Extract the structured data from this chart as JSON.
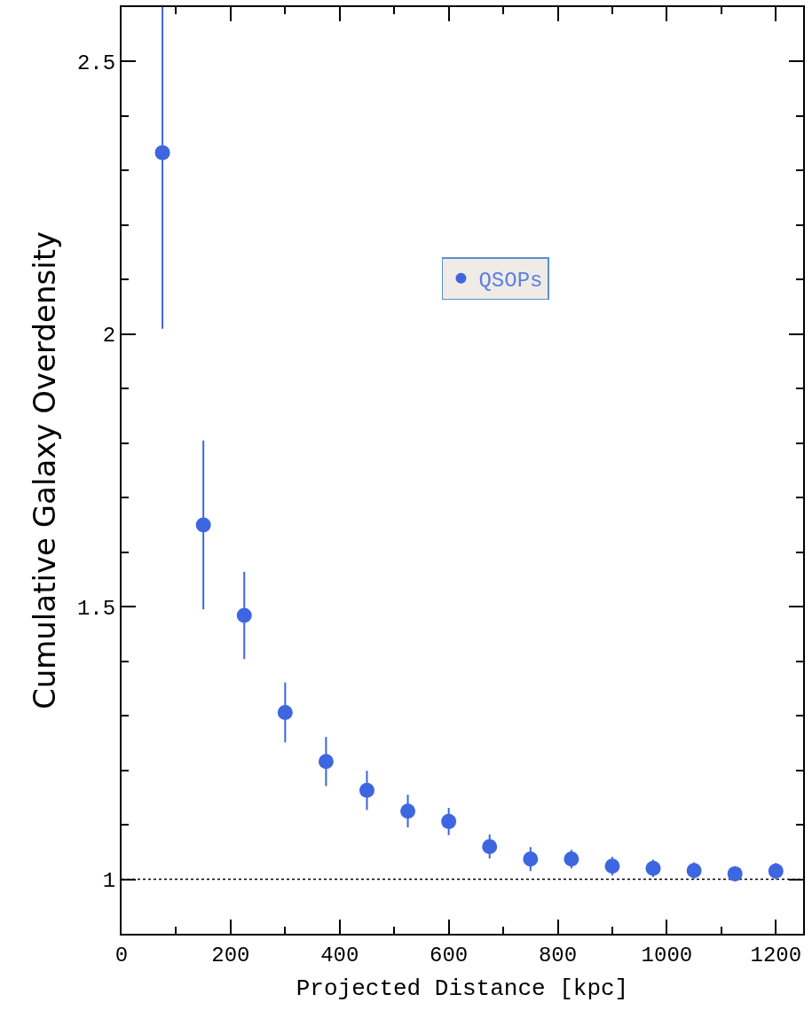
{
  "chart_data": {
    "type": "scatter",
    "xlabel": "Projected Distance [kpc]",
    "ylabel": "Cumulative Galaxy Overdensity",
    "x": [
      75,
      150,
      225,
      300,
      375,
      450,
      525,
      600,
      675,
      750,
      825,
      900,
      975,
      1050,
      1125,
      1200
    ],
    "series": [
      {
        "name": "QSOPs",
        "color": "#3d66e0",
        "values": [
          2.333,
          1.65,
          1.484,
          1.306,
          1.216,
          1.163,
          1.125,
          1.106,
          1.06,
          1.037,
          1.037,
          1.024,
          1.02,
          1.016,
          1.01,
          1.015
        ],
        "errors": [
          [
            2.01,
            2.6
          ],
          0.155,
          0.08,
          0.055,
          0.045,
          0.036,
          0.03,
          0.025,
          0.022,
          0.022,
          0.017,
          0.017,
          0.016,
          0.015,
          0.014,
          0.015
        ]
      }
    ],
    "xlim": [
      0,
      1250
    ],
    "ylim": [
      0.9,
      2.6
    ],
    "xticks": [
      0,
      {
        "value": 100,
        "label": null
      },
      200,
      {
        "value": 300,
        "label": null
      },
      400,
      {
        "value": 500,
        "label": null
      },
      600,
      {
        "value": 700,
        "label": null
      },
      800,
      {
        "value": 900,
        "label": null
      },
      1000,
      {
        "value": 1100,
        "label": null
      },
      1200
    ],
    "yticks": [
      {
        "value": 1,
        "label": "1"
      },
      {
        "value": 1.1,
        "label": null
      },
      {
        "value": 1.2,
        "label": null
      },
      {
        "value": 1.3,
        "label": null
      },
      {
        "value": 1.4,
        "label": null
      },
      1.5,
      {
        "value": 1.6,
        "label": null
      },
      {
        "value": 1.7,
        "label": null
      },
      {
        "value": 1.8,
        "label": null
      },
      {
        "value": 1.9,
        "label": null
      },
      {
        "value": 2,
        "label": "2"
      },
      {
        "value": 2.1,
        "label": null
      },
      {
        "value": 2.2,
        "label": null
      },
      {
        "value": 2.3,
        "label": null
      },
      {
        "value": 2.4,
        "label": null
      },
      2.5
    ],
    "ref_lines": [
      {
        "axis": "y",
        "value": 1,
        "color": "#000000",
        "line_style": "dotted"
      }
    ],
    "grid": false,
    "legend": "top right",
    "marker": "circle"
  }
}
